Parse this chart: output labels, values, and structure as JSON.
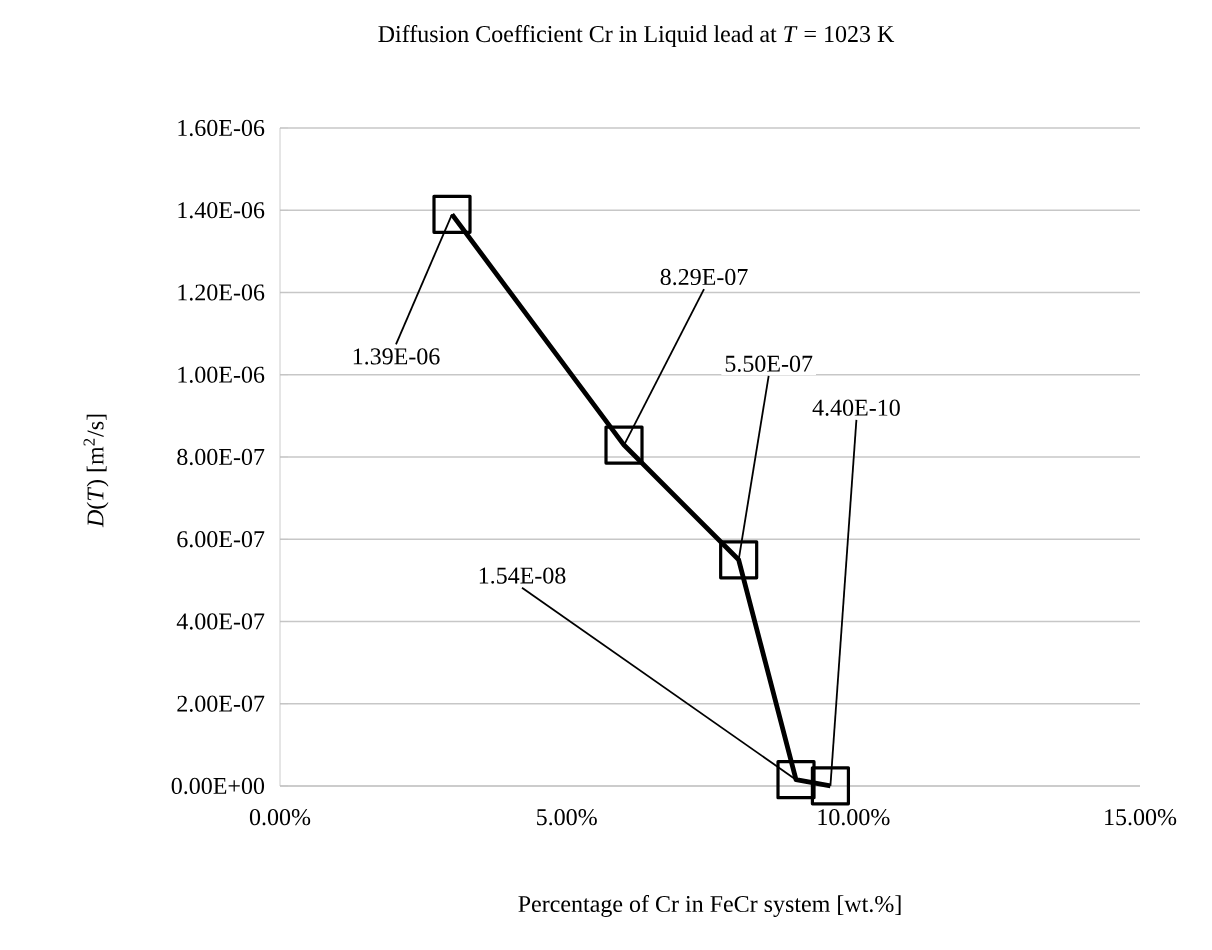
{
  "chart_data": {
    "type": "line",
    "title": "Diffusion Coefficient Cr in Liquid lead at *T* = 1023 K",
    "xlabel": "Percentage of Cr in FeCr system [wt.%]",
    "ylabel": "*D*(*T*) [m$^{2}$/s]",
    "x": [
      0.03,
      0.06,
      0.08,
      0.09,
      0.096
    ],
    "series": [
      {
        "color": "#000000",
        "values": [
          1.39e-06,
          8.29e-07,
          5.5e-07,
          1.54e-08,
          4.4e-10
        ],
        "value_labels": [
          "1.39E-06",
          "8.29E-07",
          "5.50E-07",
          "1.54E-08",
          "4.40E-10"
        ]
      }
    ],
    "xlim": [
      0,
      0.15
    ],
    "xticks": [
      {
        "value": 0,
        "label": "0.00%"
      },
      {
        "value": 0.05,
        "label": "5.00%"
      },
      {
        "value": 0.1,
        "label": "10.00%"
      },
      {
        "value": 0.15,
        "label": "15.00%"
      }
    ],
    "ylim": [
      0,
      1.6e-06
    ],
    "yticks": [
      {
        "value": 0,
        "label": "0.00E+00"
      },
      {
        "value": 2e-07,
        "label": "2.00E-07"
      },
      {
        "value": 4e-07,
        "label": "4.00E-07"
      },
      {
        "value": 6e-07,
        "label": "6.00E-07"
      },
      {
        "value": 8e-07,
        "label": "8.00E-07"
      },
      {
        "value": 1e-06,
        "label": "1.00E-06"
      },
      {
        "value": 1.2e-06,
        "label": "1.20E-06"
      },
      {
        "value": 1.4e-06,
        "label": "1.40E-06"
      },
      {
        "value": 1.6e-06,
        "label": "1.60E-06"
      }
    ],
    "grid": "y",
    "marker": "square",
    "line_style": "solid"
  }
}
